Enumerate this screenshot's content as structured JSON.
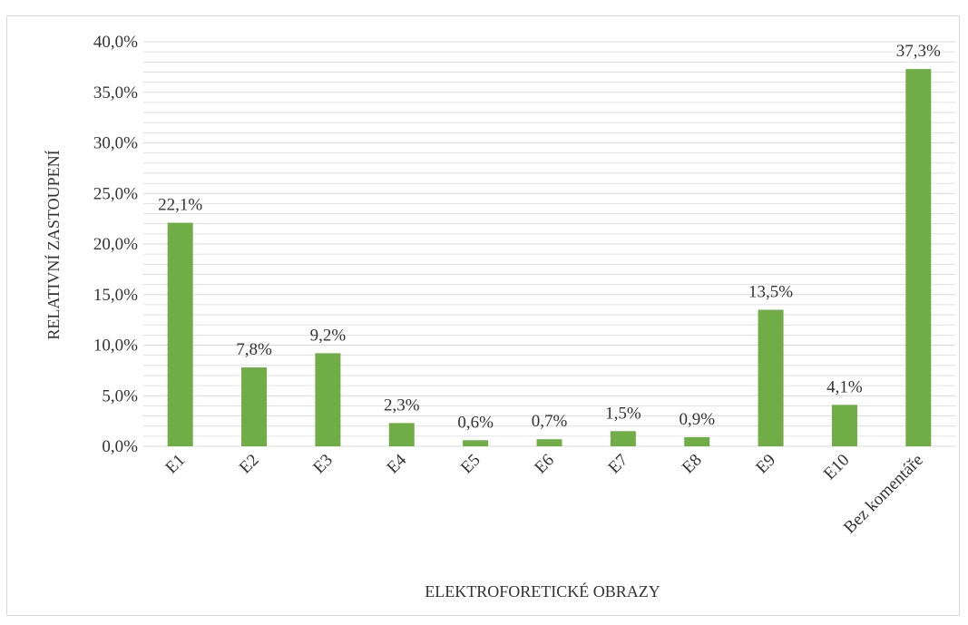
{
  "chart_data": {
    "type": "bar",
    "categories": [
      "E1",
      "E2",
      "E3",
      "E4",
      "E5",
      "E6",
      "E7",
      "E8",
      "E9",
      "E10",
      "Bez komentáře"
    ],
    "values": [
      22.1,
      7.8,
      9.2,
      2.3,
      0.6,
      0.7,
      1.5,
      0.9,
      13.5,
      4.1,
      37.3
    ],
    "data_labels": [
      "22,1%",
      "7,8%",
      "9,2%",
      "2,3%",
      "0,6%",
      "0,7%",
      "1,5%",
      "0,9%",
      "13,5%",
      "4,1%",
      "37,3%"
    ],
    "title": "",
    "xlabel": "ELEKTROFORETICKÉ OBRAZY",
    "ylabel": "RELATIVNÍ ZASTOUPENÍ",
    "ylim": [
      0,
      40
    ],
    "y_ticks": [
      0,
      5,
      10,
      15,
      20,
      25,
      30,
      35,
      40
    ],
    "y_tick_labels": [
      "0,0%",
      "5,0%",
      "10,0%",
      "15,0%",
      "20,0%",
      "25,0%",
      "30,0%",
      "35,0%",
      "40,0%"
    ],
    "minor_grid_step": 1,
    "grid": true,
    "legend": "none",
    "bar_color": "#70ad47",
    "grid_color": "#d9d9d9"
  }
}
